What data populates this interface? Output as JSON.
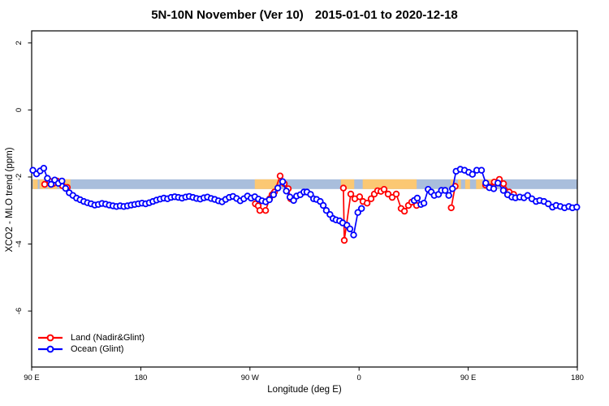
{
  "header": {
    "title_main": "5N-10N November (Ver 10)",
    "title_dates": "2015-01-01 to 2020-12-18"
  },
  "chart_data": {
    "type": "line",
    "title": "5N-10N November (Ver 10)  2015-01-01 to 2020-12-18",
    "title_main": "5N-10N November (Ver 10)",
    "title_dates": "2015-01-01 to 2020-12-18",
    "xlabel": "Longitude (deg E)",
    "ylabel": "XCO2 - MLO trend (ppm)",
    "xlim": [
      90,
      540
    ],
    "ylim": [
      -7.67,
      2.36
    ],
    "grid": false,
    "legend_position": "bottom-left",
    "x_ticks": [
      {
        "value": 90,
        "label": "90 E"
      },
      {
        "value": 180,
        "label": "180"
      },
      {
        "value": 270,
        "label": "90 W"
      },
      {
        "value": 360,
        "label": "0"
      },
      {
        "value": 450,
        "label": "90 E"
      },
      {
        "value": 540,
        "label": "180"
      }
    ],
    "y_ticks": [
      {
        "value": 2,
        "label": "2"
      },
      {
        "value": 0,
        "label": "0"
      },
      {
        "value": -2,
        "label": "-2"
      },
      {
        "value": -4,
        "label": "-4"
      },
      {
        "value": -6,
        "label": "-6"
      }
    ],
    "map_strip": {
      "ocean_color": "#a9bedc",
      "land_color": "#fbc873",
      "value_top": -2.07,
      "value_bottom": -2.36,
      "land_ranges": [
        [
          91,
          95
        ],
        [
          96.5,
          101.5
        ],
        [
          103,
          111
        ],
        [
          113,
          122
        ],
        [
          274,
          294
        ],
        [
          345,
          356
        ],
        [
          363,
          407.5
        ],
        [
          435.5,
          438.5
        ],
        [
          441.5,
          444
        ],
        [
          447.5,
          451.5
        ],
        [
          456.5,
          461.5
        ],
        [
          463,
          470
        ],
        [
          471.5,
          474
        ]
      ]
    },
    "series": [
      {
        "name": "Land (Nadir&Glint)",
        "color": "#ff0000",
        "marker": "open-circle",
        "segments": [
          [
            [
              100.7,
              -2.22
            ],
            [
              104.7,
              -2.12
            ],
            [
              107.7,
              -2.2
            ],
            [
              110.8,
              -2.12
            ],
            [
              115.4,
              -2.26
            ],
            [
              119.4,
              -2.31
            ]
          ],
          [
            [
              274.5,
              -2.8
            ],
            [
              276.8,
              -2.86
            ],
            [
              278.2,
              -3.0
            ],
            [
              282.9,
              -3.0
            ],
            [
              286.2,
              -2.65
            ],
            [
              288.2,
              -2.53
            ],
            [
              290.2,
              -2.45
            ],
            [
              294.9,
              -1.97
            ],
            [
              298.3,
              -2.2
            ],
            [
              301.6,
              -2.35
            ],
            [
              303.6,
              -2.65
            ]
          ],
          [
            [
              347.1,
              -2.33
            ],
            [
              347.8,
              -3.89
            ],
            [
              353.2,
              -2.51
            ],
            [
              356.5,
              -2.65
            ],
            [
              360.5,
              -2.59
            ],
            [
              363.2,
              -2.73
            ],
            [
              366.6,
              -2.78
            ],
            [
              369.9,
              -2.65
            ],
            [
              372.6,
              -2.51
            ],
            [
              375.3,
              -2.41
            ],
            [
              378,
              -2.43
            ],
            [
              380.6,
              -2.37
            ],
            [
              384,
              -2.51
            ],
            [
              387.3,
              -2.61
            ],
            [
              390.7,
              -2.51
            ],
            [
              394.7,
              -2.94
            ],
            [
              397.4,
              -3.02
            ],
            [
              400.7,
              -2.85
            ],
            [
              403.4,
              -2.75
            ],
            [
              407.4,
              -2.85
            ]
          ],
          [
            [
              436,
              -2.92
            ],
            [
              439.2,
              -2.28
            ]
          ],
          [
            [
              464.3,
              -2.24
            ],
            [
              468,
              -2.3
            ],
            [
              471.5,
              -2.15
            ],
            [
              475.7,
              -2.07
            ],
            [
              479.1,
              -2.2
            ],
            [
              483.8,
              -2.45
            ],
            [
              487.5,
              -2.52
            ]
          ]
        ]
      },
      {
        "name": "Ocean (Glint)",
        "color": "#0000ff",
        "marker": "open-circle",
        "segments": [
          [
            [
              91,
              -1.8
            ],
            [
              94,
              -1.91
            ],
            [
              97,
              -1.82
            ],
            [
              100,
              -1.74
            ],
            [
              103,
              -2.04
            ],
            [
              106,
              -2.22
            ],
            [
              109,
              -2.09
            ],
            [
              112,
              -2.19
            ],
            [
              115,
              -2.12
            ],
            [
              118,
              -2.34
            ],
            [
              121,
              -2.47
            ],
            [
              124,
              -2.55
            ],
            [
              127,
              -2.63
            ],
            [
              130,
              -2.68
            ],
            [
              133,
              -2.73
            ],
            [
              136,
              -2.77
            ],
            [
              139,
              -2.8
            ],
            [
              142,
              -2.84
            ],
            [
              145,
              -2.82
            ],
            [
              148,
              -2.79
            ],
            [
              151,
              -2.81
            ],
            [
              154,
              -2.84
            ],
            [
              157,
              -2.86
            ],
            [
              160,
              -2.88
            ],
            [
              163,
              -2.86
            ],
            [
              166,
              -2.88
            ],
            [
              169,
              -2.86
            ],
            [
              172,
              -2.84
            ],
            [
              175,
              -2.82
            ],
            [
              178,
              -2.8
            ],
            [
              181,
              -2.78
            ],
            [
              184,
              -2.8
            ],
            [
              187,
              -2.77
            ],
            [
              190,
              -2.73
            ],
            [
              193,
              -2.69
            ],
            [
              196,
              -2.66
            ],
            [
              199,
              -2.63
            ],
            [
              202,
              -2.65
            ],
            [
              205,
              -2.61
            ],
            [
              208,
              -2.59
            ],
            [
              211,
              -2.61
            ],
            [
              214,
              -2.63
            ],
            [
              217,
              -2.6
            ],
            [
              220,
              -2.58
            ],
            [
              223,
              -2.61
            ],
            [
              226,
              -2.64
            ],
            [
              229,
              -2.66
            ],
            [
              232,
              -2.62
            ],
            [
              235,
              -2.6
            ],
            [
              238,
              -2.64
            ],
            [
              241,
              -2.67
            ],
            [
              244,
              -2.71
            ],
            [
              247,
              -2.74
            ],
            [
              250,
              -2.67
            ],
            [
              253,
              -2.61
            ],
            [
              256,
              -2.58
            ],
            [
              259,
              -2.64
            ],
            [
              262,
              -2.71
            ],
            [
              265,
              -2.65
            ],
            [
              268,
              -2.57
            ],
            [
              271,
              -2.63
            ],
            [
              274,
              -2.59
            ],
            [
              277,
              -2.66
            ],
            [
              280,
              -2.71
            ],
            [
              283,
              -2.74
            ],
            [
              286,
              -2.68
            ],
            [
              289.5,
              -2.53
            ],
            [
              293,
              -2.33
            ],
            [
              297,
              -2.14
            ],
            [
              300,
              -2.42
            ],
            [
              303,
              -2.6
            ],
            [
              306,
              -2.7
            ],
            [
              308.5,
              -2.57
            ],
            [
              311.5,
              -2.53
            ],
            [
              314.5,
              -2.45
            ],
            [
              317,
              -2.45
            ],
            [
              320,
              -2.52
            ],
            [
              322.5,
              -2.65
            ],
            [
              325,
              -2.67
            ],
            [
              328,
              -2.73
            ],
            [
              330.5,
              -2.85
            ],
            [
              333,
              -3.0
            ],
            [
              336,
              -3.12
            ],
            [
              338.5,
              -3.24
            ],
            [
              341,
              -3.28
            ],
            [
              344,
              -3.31
            ],
            [
              346.5,
              -3.37
            ],
            [
              350,
              -3.44
            ],
            [
              352.5,
              -3.55
            ],
            [
              355.5,
              -3.73
            ],
            [
              359,
              -3.06
            ],
            [
              362,
              -2.94
            ]
          ],
          [
            [
              405.5,
              -2.7
            ],
            [
              408,
              -2.63
            ],
            [
              411,
              -2.82
            ],
            [
              413.5,
              -2.78
            ],
            [
              417,
              -2.37
            ],
            [
              419.5,
              -2.45
            ],
            [
              422,
              -2.55
            ],
            [
              425.5,
              -2.52
            ],
            [
              428,
              -2.4
            ],
            [
              431,
              -2.4
            ],
            [
              434,
              -2.55
            ],
            [
              437,
              -2.35
            ],
            [
              440,
              -1.83
            ],
            [
              443.5,
              -1.77
            ],
            [
              447,
              -1.8
            ],
            [
              450.5,
              -1.86
            ],
            [
              453.5,
              -1.92
            ],
            [
              457,
              -1.8
            ],
            [
              461,
              -1.8
            ],
            [
              464.5,
              -2.18
            ],
            [
              467.5,
              -2.32
            ],
            [
              471,
              -2.35
            ],
            [
              474.5,
              -2.18
            ],
            [
              479,
              -2.4
            ],
            [
              482.5,
              -2.53
            ],
            [
              486,
              -2.6
            ],
            [
              489,
              -2.62
            ],
            [
              492.5,
              -2.6
            ],
            [
              496,
              -2.62
            ],
            [
              499,
              -2.55
            ],
            [
              502.5,
              -2.65
            ],
            [
              506,
              -2.73
            ],
            [
              509,
              -2.7
            ],
            [
              512.5,
              -2.73
            ],
            [
              516,
              -2.8
            ],
            [
              519.5,
              -2.9
            ],
            [
              522.5,
              -2.85
            ],
            [
              526,
              -2.88
            ],
            [
              529.5,
              -2.92
            ],
            [
              533,
              -2.88
            ],
            [
              536,
              -2.92
            ],
            [
              539.5,
              -2.9
            ]
          ]
        ]
      }
    ],
    "legend": {
      "entries": [
        "Land (Nadir&Glint)",
        "Ocean (Glint)"
      ]
    }
  }
}
